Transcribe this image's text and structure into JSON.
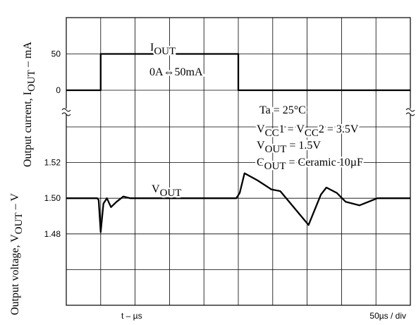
{
  "chart_data": [
    {
      "type": "line",
      "y_label": [
        {
          "text": "Output current, I"
        },
        {
          "text": "OUT",
          "sub": true
        },
        {
          "text": " – mA"
        }
      ],
      "xlim": [
        0,
        500
      ],
      "ylim": [
        0,
        100
      ],
      "yticks": [
        0,
        50
      ],
      "series": [
        {
          "name": [
            {
              "text": "I"
            },
            {
              "text": "OUT",
              "sub": true
            }
          ],
          "color": "#000000",
          "x": [
            0,
            50,
            50,
            250,
            250,
            500
          ],
          "values": [
            0,
            0,
            50,
            50,
            0,
            0
          ]
        }
      ],
      "annotations": [
        [
          {
            "text": "0A⇔50mA"
          }
        ]
      ]
    },
    {
      "type": "line",
      "y_label": [
        {
          "text": "Output voltage, V"
        },
        {
          "text": "OUT",
          "sub": true
        },
        {
          "text": " – V"
        }
      ],
      "x_label": "t – µs",
      "x_scale_label": "50µs / div",
      "xlim": [
        0,
        500
      ],
      "ylim": [
        1.44,
        1.54
      ],
      "yticks": [
        1.48,
        {
          "value": 1.5,
          "label": "1.50"
        },
        1.52
      ],
      "series": [
        {
          "name": [
            {
              "text": "V"
            },
            {
              "text": "OUT",
              "sub": true
            }
          ],
          "color": "#000000",
          "x": [
            0,
            45,
            47,
            50,
            54,
            59,
            65,
            73,
            83,
            93,
            247,
            252,
            259,
            278,
            298,
            311,
            352,
            370,
            378,
            393,
            406,
            426,
            452,
            500
          ],
          "values": [
            1.5,
            1.5,
            1.499,
            1.481,
            1.497,
            1.5,
            1.495,
            1.498,
            1.501,
            1.5,
            1.5,
            1.503,
            1.514,
            1.51,
            1.505,
            1.504,
            1.485,
            1.502,
            1.506,
            1.503,
            1.498,
            1.496,
            1.5,
            1.5
          ]
        }
      ],
      "annotations": [
        [
          {
            "text": "Ta = 25°C"
          }
        ],
        [
          {
            "text": "V"
          },
          {
            "text": "CC",
            "sub": true
          },
          {
            "text": "1 = V"
          },
          {
            "text": "CC",
            "sub": true
          },
          {
            "text": "2 = 3.5V"
          }
        ],
        [
          {
            "text": "V"
          },
          {
            "text": "OUT",
            "sub": true
          },
          {
            "text": " = 1.5V"
          }
        ],
        [
          {
            "text": "C"
          },
          {
            "text": "OUT",
            "sub": true
          },
          {
            "text": " = Ceramic 10µF"
          }
        ]
      ]
    }
  ]
}
